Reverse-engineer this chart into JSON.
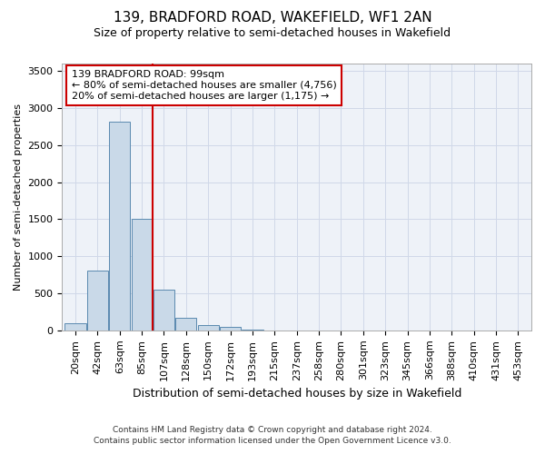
{
  "title1": "139, BRADFORD ROAD, WAKEFIELD, WF1 2AN",
  "title2": "Size of property relative to semi-detached houses in Wakefield",
  "xlabel": "Distribution of semi-detached houses by size in Wakefield",
  "ylabel": "Number of semi-detached properties",
  "footnote1": "Contains HM Land Registry data © Crown copyright and database right 2024.",
  "footnote2": "Contains public sector information licensed under the Open Government Licence v3.0.",
  "categories": [
    "20sqm",
    "42sqm",
    "63sqm",
    "85sqm",
    "107sqm",
    "128sqm",
    "150sqm",
    "172sqm",
    "193sqm",
    "215sqm",
    "237sqm",
    "258sqm",
    "280sqm",
    "301sqm",
    "323sqm",
    "345sqm",
    "366sqm",
    "388sqm",
    "410sqm",
    "431sqm",
    "453sqm"
  ],
  "values": [
    100,
    810,
    2820,
    1500,
    545,
    175,
    75,
    48,
    12,
    5,
    3,
    2,
    1,
    1,
    0,
    0,
    0,
    0,
    0,
    0,
    0
  ],
  "bar_color": "#c9d9e8",
  "bar_edge_color": "#5a8ab0",
  "grid_color": "#d0d8e8",
  "background_color": "#eef2f8",
  "annotation_box_color": "#ffffff",
  "annotation_border_color": "#cc0000",
  "vline_color": "#cc0000",
  "vline_position": 3.5,
  "annotation_title": "139 BRADFORD ROAD: 99sqm",
  "annotation_line1": "← 80% of semi-detached houses are smaller (4,756)",
  "annotation_line2": "20% of semi-detached houses are larger (1,175) →",
  "ylim": [
    0,
    3600
  ],
  "yticks": [
    0,
    500,
    1000,
    1500,
    2000,
    2500,
    3000,
    3500
  ],
  "title1_fontsize": 11,
  "title2_fontsize": 9,
  "xlabel_fontsize": 9,
  "ylabel_fontsize": 8,
  "tick_fontsize": 8,
  "annot_fontsize": 8,
  "footnote_fontsize": 6.5
}
